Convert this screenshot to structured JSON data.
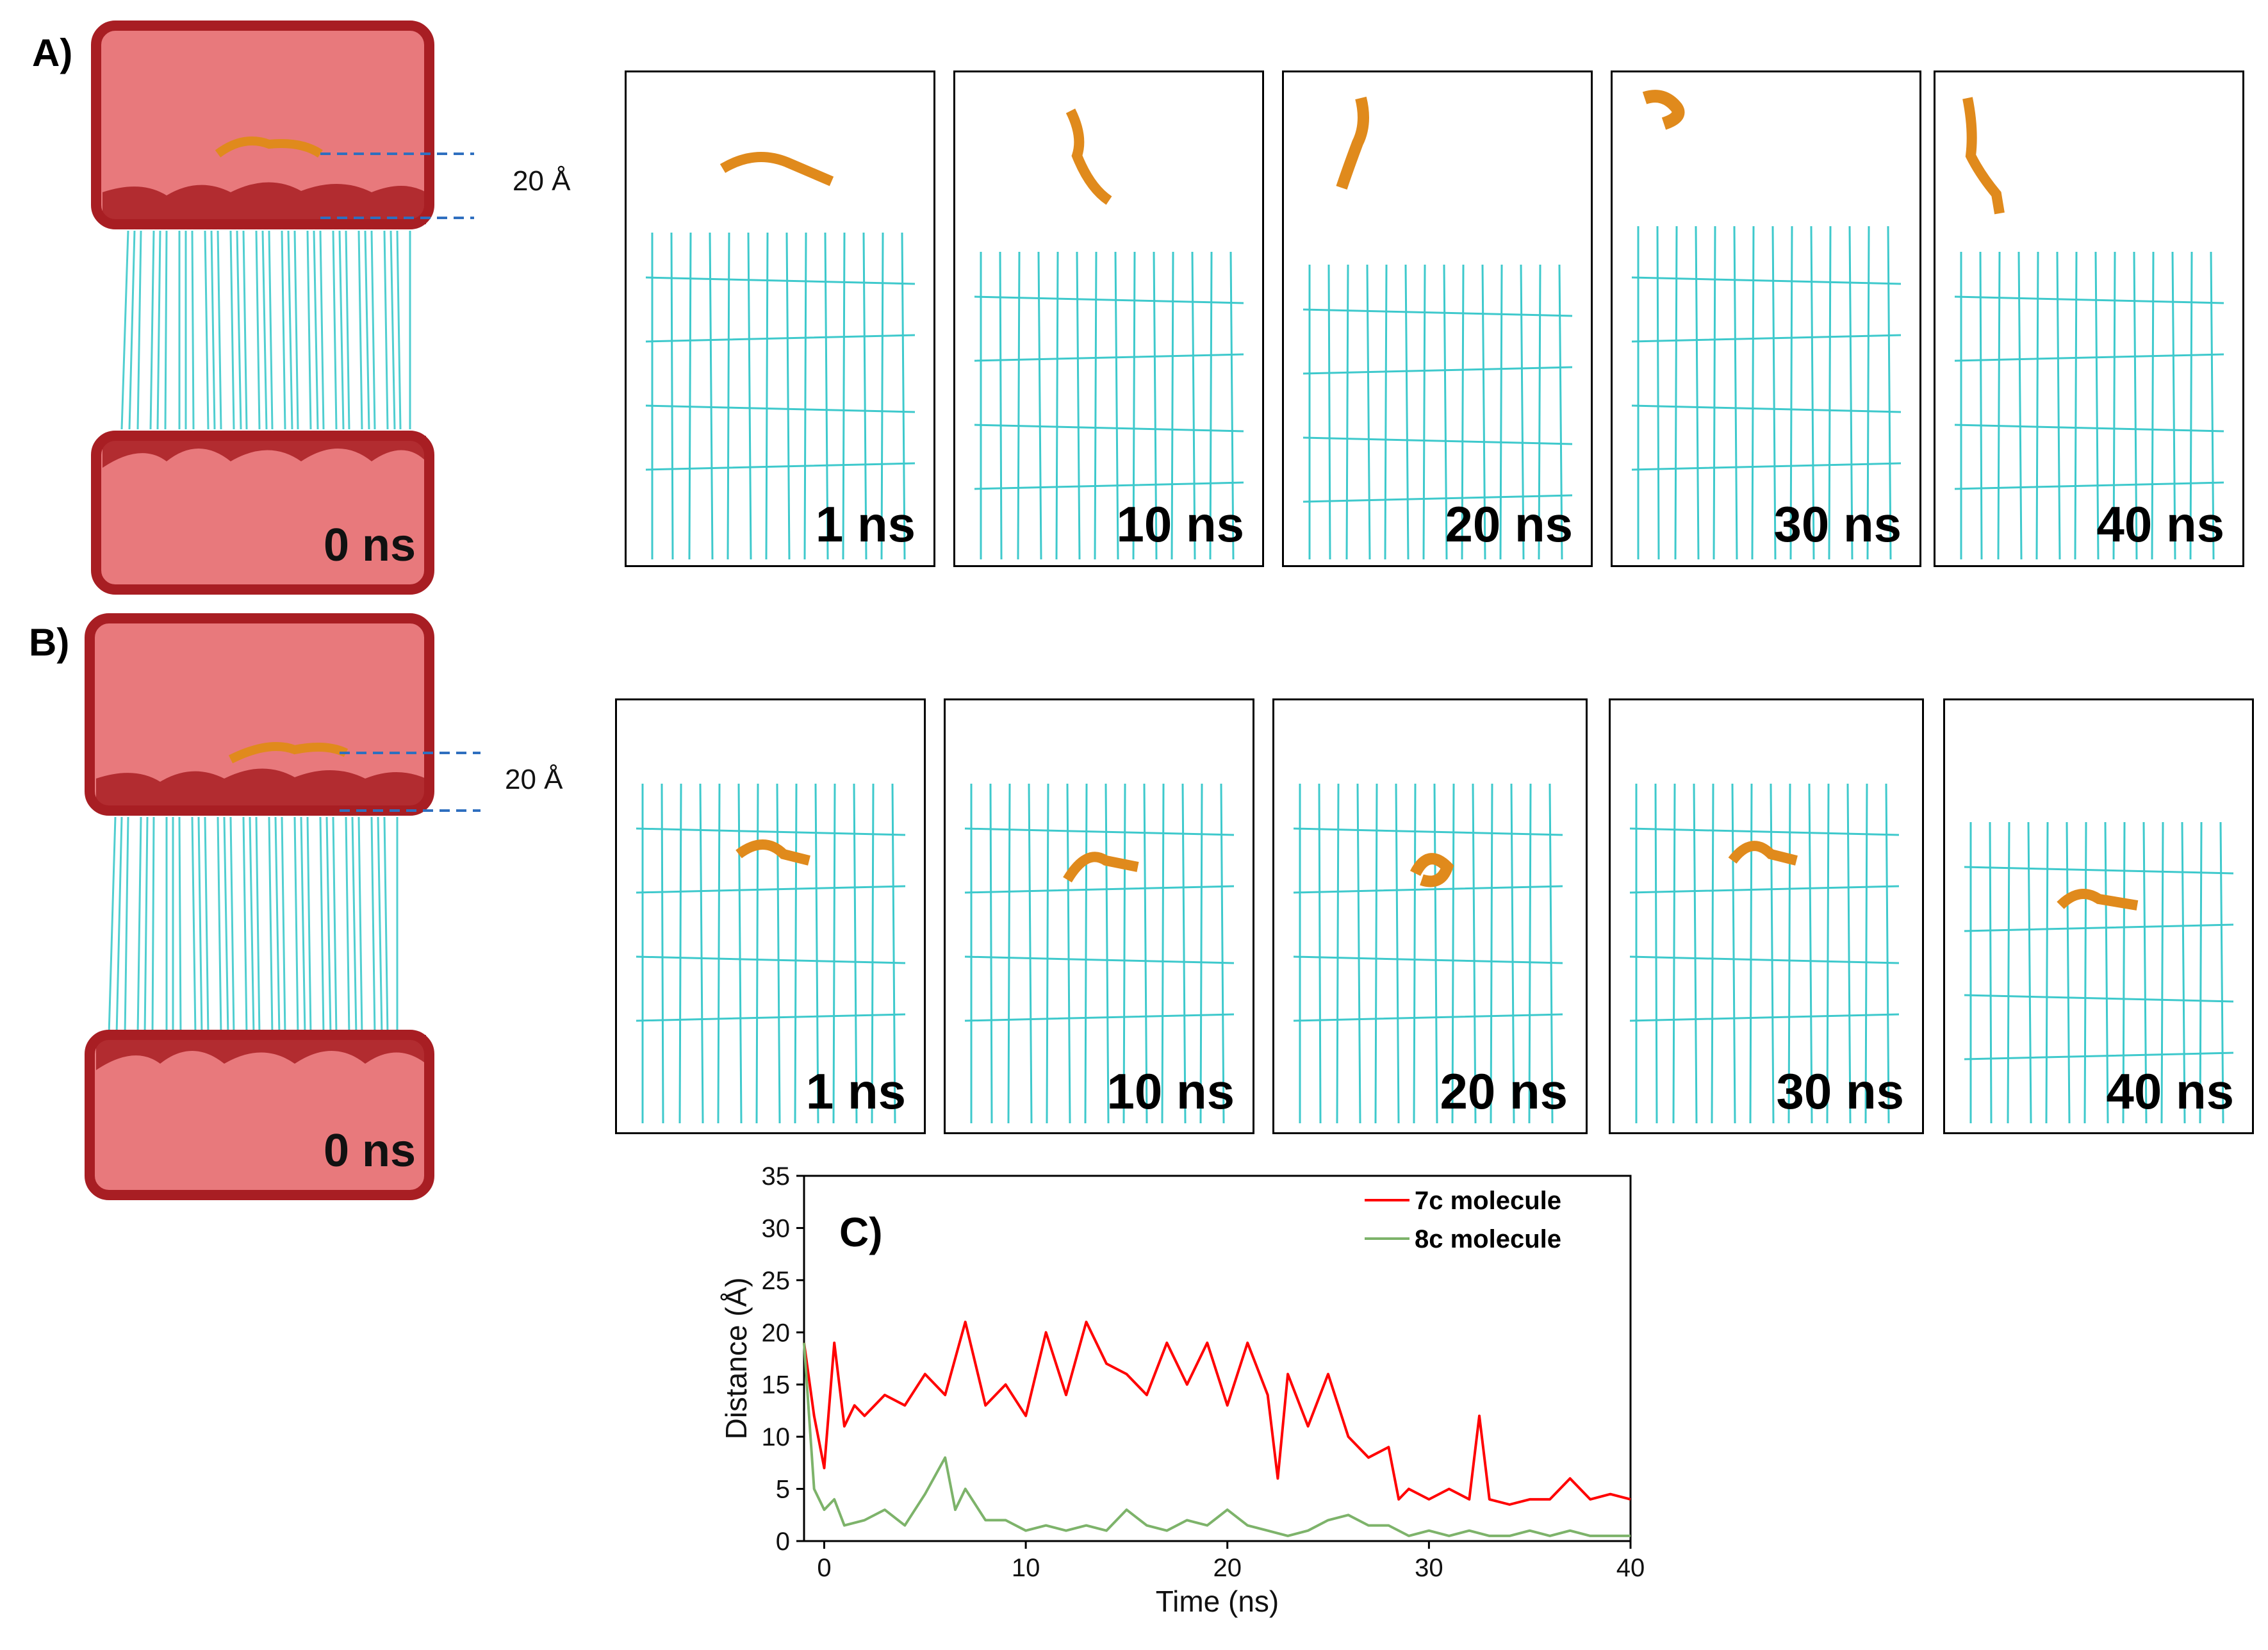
{
  "panels": {
    "a": {
      "label": "A)",
      "system_time": "0 ns",
      "distance_label": "20 Å",
      "snapshots": [
        "1 ns",
        "10 ns",
        "20 ns",
        "30 ns",
        "40 ns"
      ]
    },
    "b": {
      "label": "B)",
      "system_time": "0 ns",
      "distance_label": "20 Å",
      "snapshots": [
        "1 ns",
        "10 ns",
        "20 ns",
        "30 ns",
        "40 ns"
      ]
    }
  },
  "colors": {
    "water": "#e8797c",
    "water_edge": "#a81e23",
    "lipid": "#3ec9cc",
    "molecule": "#e08a1c",
    "line_7c": "#ff0000",
    "line_8c": "#7db36a",
    "guide": "#2f6fbf"
  },
  "chart_data": {
    "type": "line",
    "panel_label": "C)",
    "xlabel": "Time (ns)",
    "ylabel": "Distance (Å)",
    "xlim": [
      -1,
      40
    ],
    "ylim": [
      0,
      35
    ],
    "xticks": [
      0,
      10,
      20,
      30,
      40
    ],
    "yticks": [
      0,
      5,
      10,
      15,
      20,
      25,
      30,
      35
    ],
    "legend_position": "top-right",
    "series": [
      {
        "name": "7c molecule",
        "x": [
          -1,
          -0.5,
          0,
          0.5,
          1,
          1.5,
          2,
          3,
          4,
          5,
          6,
          7,
          8,
          9,
          10,
          11,
          12,
          13,
          14,
          15,
          16,
          17,
          18,
          19,
          20,
          21,
          22,
          22.5,
          23,
          24,
          25,
          26,
          27,
          28,
          28.5,
          29,
          30,
          31,
          32,
          32.5,
          33,
          34,
          35,
          36,
          37,
          38,
          39,
          40
        ],
        "values": [
          19,
          12,
          7,
          19,
          11,
          13,
          12,
          14,
          13,
          16,
          14,
          21,
          13,
          15,
          12,
          20,
          14,
          21,
          17,
          16,
          14,
          19,
          15,
          19,
          13,
          19,
          14,
          6,
          16,
          11,
          16,
          10,
          8,
          9,
          4,
          5,
          4,
          5,
          4,
          12,
          4,
          3.5,
          4,
          4,
          6,
          4,
          4.5,
          4
        ]
      },
      {
        "name": "8c molecule",
        "x": [
          -1,
          -0.5,
          0,
          0.5,
          1,
          2,
          3,
          4,
          5,
          6,
          6.5,
          7,
          8,
          9,
          10,
          11,
          12,
          13,
          14,
          15,
          16,
          17,
          18,
          19,
          20,
          21,
          22,
          23,
          24,
          25,
          26,
          27,
          28,
          29,
          30,
          31,
          32,
          33,
          34,
          35,
          36,
          37,
          38,
          39,
          40
        ],
        "values": [
          19,
          5,
          3,
          4,
          1.5,
          2,
          3,
          1.5,
          4.5,
          8,
          3,
          5,
          2,
          2,
          1,
          1.5,
          1,
          1.5,
          1,
          3,
          1.5,
          1,
          2,
          1.5,
          3,
          1.5,
          1,
          0.5,
          1,
          2,
          2.5,
          1.5,
          1.5,
          0.5,
          1,
          0.5,
          1,
          0.5,
          0.5,
          1,
          0.5,
          1,
          0.5,
          0.5,
          0.5
        ]
      }
    ]
  }
}
